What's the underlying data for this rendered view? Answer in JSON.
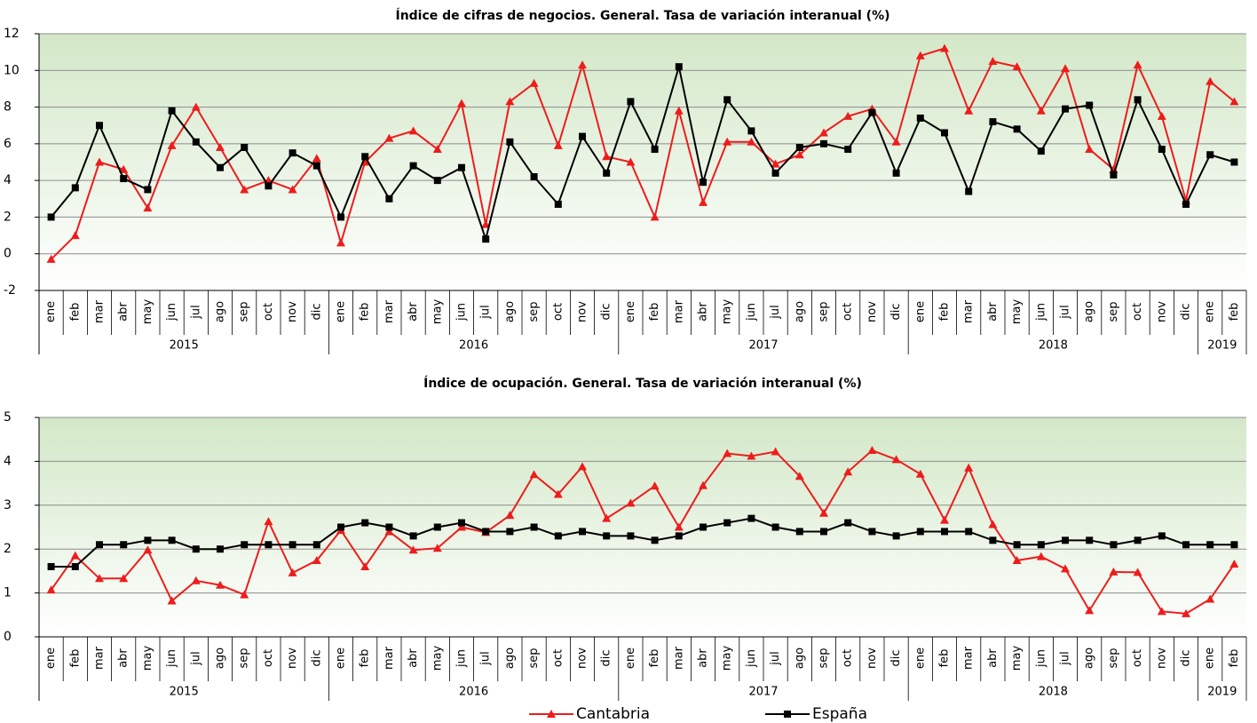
{
  "chart_data": [
    {
      "type": "line",
      "title": "Índice de cifras de negocios. General. Tasa de variación interanual (%)",
      "category_groups": [
        {
          "name": "2015",
          "categories": [
            "ene",
            "feb",
            "mar",
            "abr",
            "may",
            "jun",
            "jul",
            "ago",
            "sep",
            "oct",
            "nov",
            "dic"
          ]
        },
        {
          "name": "2016",
          "categories": [
            "ene",
            "feb",
            "mar",
            "abr",
            "may",
            "jun",
            "jul",
            "ago",
            "sep",
            "oct",
            "nov",
            "dic"
          ]
        },
        {
          "name": "2017",
          "categories": [
            "ene",
            "feb",
            "mar",
            "abr",
            "may",
            "jun",
            "jul",
            "ago",
            "sep",
            "oct",
            "nov",
            "dic"
          ]
        },
        {
          "name": "2018",
          "categories": [
            "ene",
            "feb",
            "mar",
            "abr",
            "may",
            "jun",
            "jul",
            "ago",
            "sep",
            "oct",
            "nov",
            "dic"
          ]
        },
        {
          "name": "2019",
          "categories": [
            "ene",
            "feb"
          ]
        }
      ],
      "series": [
        {
          "color": "#ee1c1c",
          "marker": "triangle",
          "values": [
            -0.3,
            1.0,
            5.0,
            4.6,
            2.5,
            5.9,
            8.0,
            5.8,
            3.5,
            4.0,
            3.5,
            5.2,
            0.6,
            5.0,
            6.3,
            6.7,
            5.7,
            8.2,
            1.6,
            8.3,
            9.3,
            5.9,
            10.3,
            5.3,
            5.0,
            2.0,
            7.8,
            2.8,
            6.1,
            6.1,
            4.9,
            5.4,
            6.6,
            7.5,
            7.9,
            6.1,
            10.8,
            11.2,
            7.8,
            10.5,
            10.2,
            7.8,
            10.1,
            5.7,
            4.6,
            10.3,
            7.5,
            2.9,
            9.4,
            8.3
          ]
        },
        {
          "color": "#000000",
          "marker": "square",
          "values": [
            2.0,
            3.6,
            7.0,
            4.1,
            3.5,
            7.8,
            6.1,
            4.7,
            5.8,
            3.7,
            5.5,
            4.8,
            2.0,
            5.3,
            3.0,
            4.8,
            4.0,
            4.7,
            0.8,
            6.1,
            4.2,
            2.7,
            6.4,
            4.4,
            8.3,
            5.7,
            10.2,
            3.9,
            8.4,
            6.7,
            4.4,
            5.8,
            6.0,
            5.7,
            7.7,
            4.4,
            7.4,
            6.6,
            3.4,
            7.2,
            6.8,
            5.6,
            7.9,
            8.1,
            4.3,
            8.4,
            5.7,
            2.7,
            5.4,
            5.0
          ]
        }
      ],
      "ylim": [
        -2,
        12
      ],
      "yticks": [
        -2,
        0,
        2,
        4,
        6,
        8,
        10,
        12
      ],
      "grid": true
    },
    {
      "type": "line",
      "title": "Índice de ocupación. General. Tasa de variación interanual (%)",
      "category_groups": [
        {
          "name": "2015",
          "categories": [
            "ene",
            "feb",
            "mar",
            "abr",
            "may",
            "jun",
            "jul",
            "ago",
            "sep",
            "oct",
            "nov",
            "dic"
          ]
        },
        {
          "name": "2016",
          "categories": [
            "ene",
            "feb",
            "mar",
            "abr",
            "may",
            "jun",
            "jul",
            "ago",
            "sep",
            "oct",
            "nov",
            "dic"
          ]
        },
        {
          "name": "2017",
          "categories": [
            "ene",
            "feb",
            "mar",
            "abr",
            "may",
            "jun",
            "jul",
            "ago",
            "sep",
            "oct",
            "nov",
            "dic"
          ]
        },
        {
          "name": "2018",
          "categories": [
            "ene",
            "feb",
            "mar",
            "abr",
            "may",
            "jun",
            "jul",
            "ago",
            "sep",
            "oct",
            "nov",
            "dic"
          ]
        },
        {
          "name": "2019",
          "categories": [
            "ene",
            "feb"
          ]
        }
      ],
      "series": [
        {
          "name": "Cantabria",
          "color": "#ee1c1c",
          "marker": "triangle",
          "values": [
            1.07,
            1.85,
            1.33,
            1.33,
            1.98,
            0.82,
            1.28,
            1.18,
            0.96,
            2.63,
            1.46,
            1.74,
            2.43,
            1.6,
            2.4,
            1.98,
            2.02,
            2.5,
            2.38,
            2.77,
            3.7,
            3.25,
            3.88,
            2.7,
            3.05,
            3.44,
            2.5,
            3.45,
            4.18,
            4.12,
            4.22,
            3.66,
            2.82,
            3.76,
            4.25,
            4.04,
            3.71,
            2.66,
            3.85,
            2.56,
            1.74,
            1.83,
            1.55,
            0.6,
            1.48,
            1.47,
            0.58,
            0.53,
            0.86,
            1.66
          ]
        },
        {
          "name": "España",
          "color": "#000000",
          "marker": "square",
          "values": [
            1.6,
            1.6,
            2.1,
            2.1,
            2.2,
            2.2,
            2.0,
            2.0,
            2.1,
            2.1,
            2.1,
            2.1,
            2.5,
            2.6,
            2.5,
            2.3,
            2.5,
            2.6,
            2.4,
            2.4,
            2.5,
            2.3,
            2.4,
            2.3,
            2.3,
            2.2,
            2.3,
            2.5,
            2.6,
            2.7,
            2.5,
            2.4,
            2.4,
            2.6,
            2.4,
            2.3,
            2.4,
            2.4,
            2.4,
            2.2,
            2.1,
            2.1,
            2.2,
            2.2,
            2.1,
            2.2,
            2.3,
            2.1,
            2.1,
            2.1
          ]
        }
      ],
      "ylim": [
        0,
        5
      ],
      "yticks": [
        0,
        1,
        2,
        3,
        4,
        5
      ],
      "grid": true,
      "legend": "bottom"
    }
  ]
}
